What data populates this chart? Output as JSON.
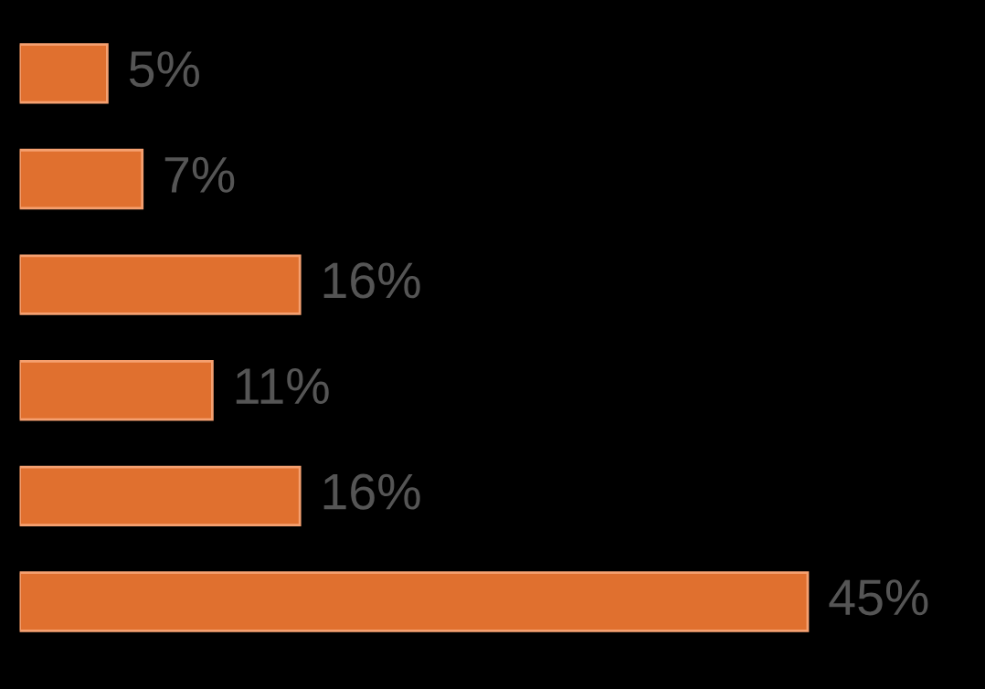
{
  "chart_data": {
    "type": "bar",
    "orientation": "horizontal",
    "categories": [
      null,
      null,
      null,
      null,
      null,
      null
    ],
    "values": [
      5,
      7,
      16,
      11,
      16,
      45
    ],
    "value_labels": [
      "5%",
      "7%",
      "16%",
      "11%",
      "16%",
      "45%"
    ],
    "color": "#e0702f"
  }
}
